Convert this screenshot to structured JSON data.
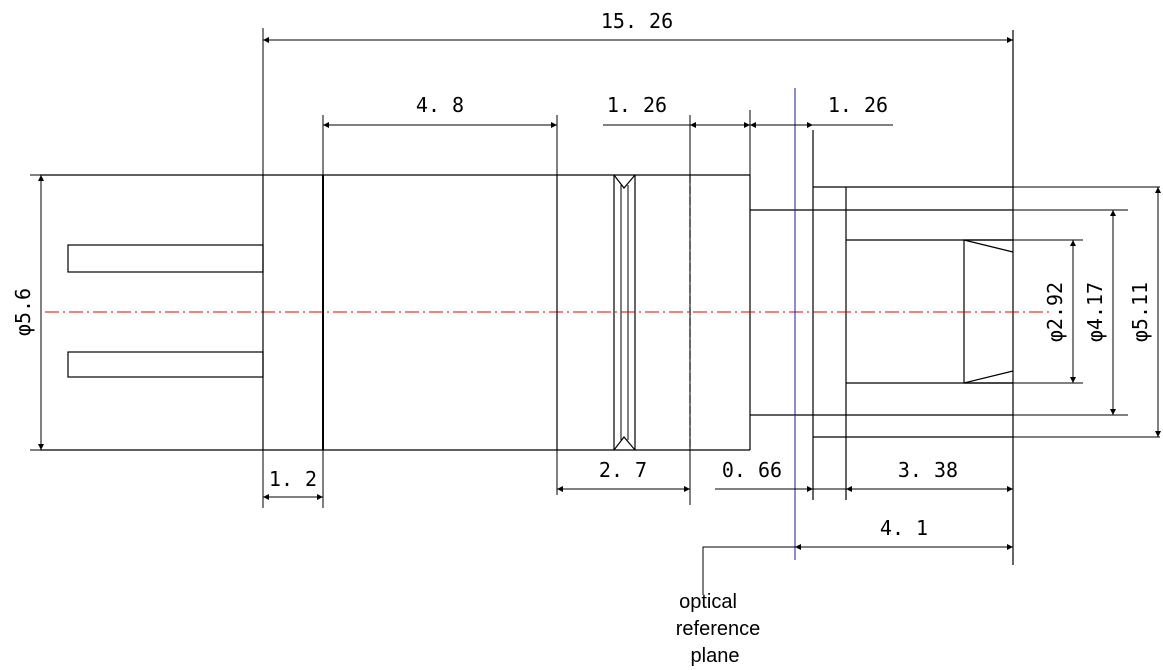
{
  "dimensions": {
    "overall_length": "15. 26",
    "body_length": "4. 8",
    "groove_width": "1. 26",
    "flange_width": "1. 26",
    "pin_offset": "1. 2",
    "rear_section": "2. 7",
    "plane_offset": "0. 66",
    "lens_depth": "3. 38",
    "plane_to_end": "4. 1",
    "outer_diameter": "φ5.6",
    "inner_diameter_small": "φ2.92",
    "inner_diameter_mid": "φ4.17",
    "inner_diameter_large": "φ5.11"
  },
  "callout": {
    "line1": "optical",
    "line2": "reference",
    "line3": "plane"
  }
}
